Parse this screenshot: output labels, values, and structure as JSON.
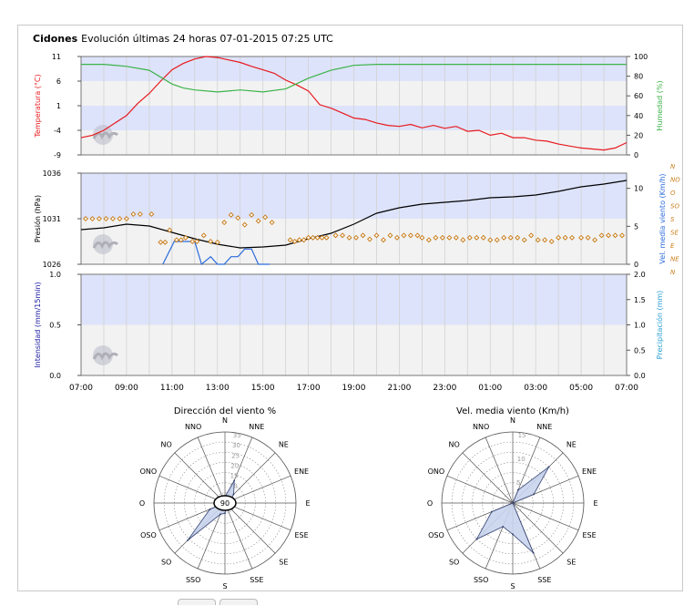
{
  "header": {
    "station": "Cidones",
    "subtitle": "Evolución últimas 24 horas 07-01-2015 07:25 UTC"
  },
  "colors": {
    "temperature": "#e8191e",
    "humidity": "#3cb34a",
    "pressure": "#000000",
    "wind_speed": "#2b6bdc",
    "wind_dir": "#c97d1b",
    "band": "#dde3fa",
    "band_alt": "#f2f2f2",
    "intensity_label": "#1a1aa0",
    "precip_label": "#2aa0d6",
    "rose_fill": "#c9d4ee"
  },
  "x_axis": {
    "labels": [
      "07:00",
      "09:00",
      "11:00",
      "13:00",
      "15:00",
      "17:00",
      "19:00",
      "21:00",
      "23:00",
      "01:00",
      "03:00",
      "05:00",
      "07:00"
    ]
  },
  "chart_data": [
    {
      "type": "line",
      "x_unit": "hours since 07:00",
      "left_axis": {
        "label": "Temperatura (°C)",
        "ticks": [
          "11",
          "6",
          "1",
          "-4",
          "-9"
        ],
        "range": [
          -9,
          11
        ]
      },
      "right_axis": {
        "label": "Humedad (%)",
        "ticks": [
          "100",
          "80",
          "60",
          "40",
          "20",
          "0"
        ],
        "range": [
          0,
          100
        ]
      },
      "series": [
        {
          "name": "Temperatura (°C)",
          "axis": "left",
          "x": [
            0,
            0.5,
            1,
            1.5,
            2,
            2.5,
            3,
            3.5,
            4,
            4.5,
            5,
            5.5,
            6,
            6.5,
            7,
            7.5,
            8,
            8.5,
            9,
            9.5,
            10,
            10.5,
            11,
            11.5,
            12,
            12.5,
            13,
            13.5,
            14,
            14.5,
            15,
            15.5,
            16,
            16.5,
            17,
            17.5,
            18,
            18.5,
            19,
            19.5,
            20,
            20.5,
            21,
            21.5,
            22,
            22.5,
            23,
            23.5,
            24
          ],
          "values": [
            -5.5,
            -5,
            -4,
            -2.5,
            -1,
            1.5,
            3.5,
            6,
            8.3,
            9.6,
            10.5,
            11,
            10.8,
            10.3,
            9.8,
            9,
            8.3,
            7.6,
            6.2,
            5.2,
            4,
            1.2,
            0.5,
            -0.5,
            -1.5,
            -1.8,
            -2.5,
            -3,
            -3.2,
            -2.8,
            -3.5,
            -3,
            -3.6,
            -3.2,
            -4.2,
            -4,
            -5,
            -4.6,
            -5.5,
            -5.5,
            -6,
            -6.2,
            -6.8,
            -7.2,
            -7.6,
            -7.8,
            -8,
            -7.6,
            -6.5
          ]
        },
        {
          "name": "Humedad (%)",
          "axis": "right",
          "x": [
            0,
            1,
            2,
            3,
            4,
            4.5,
            5,
            6,
            7,
            8,
            9,
            10,
            11,
            12,
            13,
            14,
            15,
            16,
            17,
            18,
            19,
            20,
            21,
            22,
            23,
            24
          ],
          "values": [
            92,
            92,
            90,
            86,
            72,
            68,
            66,
            64,
            66,
            64,
            67,
            78,
            86,
            91,
            92,
            92,
            92,
            92,
            92,
            92,
            92,
            92,
            92,
            92,
            92,
            92
          ]
        }
      ]
    },
    {
      "type": "line",
      "x_unit": "hours since 07:00",
      "left_axis": {
        "label": "Presión (hPa)",
        "ticks": [
          "1036",
          "1031",
          "1026"
        ],
        "range": [
          1026,
          1036
        ]
      },
      "right_axis": {
        "label": "Vel. media viento (Km/h)",
        "ticks": [
          "10",
          "5",
          "0"
        ],
        "range": [
          0,
          12
        ]
      },
      "dir_axis": {
        "ticks": [
          "N",
          "NO",
          "O",
          "SO",
          "S",
          "SE",
          "E",
          "NE",
          "N"
        ]
      },
      "series": [
        {
          "name": "Presión (hPa)",
          "axis": "left",
          "x": [
            0,
            1,
            2,
            3,
            4,
            5,
            6,
            7,
            8,
            9,
            10,
            11,
            12,
            13,
            14,
            15,
            16,
            17,
            18,
            19,
            20,
            21,
            22,
            23,
            24
          ],
          "values": [
            1029.8,
            1030,
            1030.4,
            1030.2,
            1029.5,
            1028.8,
            1028.2,
            1027.8,
            1027.9,
            1028.1,
            1028.8,
            1029.4,
            1030.4,
            1031.6,
            1032.2,
            1032.6,
            1032.8,
            1033,
            1033.3,
            1033.4,
            1033.6,
            1034,
            1034.5,
            1034.8,
            1035.2
          ]
        },
        {
          "name": "Vel. media viento (Km/h)",
          "axis": "right",
          "x": [
            3.6,
            4.1,
            4.6,
            5,
            5.3,
            5.7,
            6,
            6.3,
            6.6,
            6.9,
            7.2,
            7.5,
            7.8,
            8.3
          ],
          "values": [
            0,
            3,
            3,
            3,
            0,
            1,
            0,
            0,
            1,
            1,
            2,
            2,
            0,
            0
          ]
        },
        {
          "name": "Dirección",
          "axis": "dir",
          "marker": "diamond",
          "x": [
            0.2,
            0.5,
            0.8,
            1.1,
            1.4,
            1.7,
            2,
            2.3,
            2.6,
            3.1,
            3.5,
            3.7,
            3.9,
            4.2,
            4.4,
            4.6,
            4.9,
            5.1,
            5.4,
            5.7,
            6,
            6.3,
            6.6,
            6.9,
            7.2,
            7.5,
            7.8,
            8.1,
            8.4,
            9.2,
            9.4,
            9.6,
            9.8,
            10,
            10.2,
            10.4,
            10.6,
            10.8,
            11.2,
            11.5,
            11.8,
            12.1,
            12.4,
            12.7,
            13,
            13.3,
            13.6,
            13.9,
            14.2,
            14.5,
            14.8,
            15,
            15.3,
            15.6,
            15.9,
            16.2,
            16.5,
            16.8,
            17.1,
            17.4,
            17.7,
            18,
            18.3,
            18.6,
            18.9,
            19.2,
            19.5,
            19.8,
            20.1,
            20.4,
            20.7,
            21,
            21.3,
            21.6,
            22,
            22.3,
            22.6,
            22.9,
            23.2,
            23.5,
            23.8
          ],
          "values": [
            6,
            6,
            6,
            6,
            6,
            6,
            6,
            6.6,
            6.6,
            6.6,
            2.9,
            2.9,
            4.5,
            3.2,
            3.2,
            3.5,
            3,
            3,
            3.8,
            3,
            2.9,
            5.5,
            6.5,
            6.1,
            5.2,
            6.5,
            5.7,
            6.2,
            5.5,
            3.2,
            3,
            3.2,
            3.2,
            3.5,
            3.5,
            3.5,
            3.5,
            3.5,
            3.8,
            3.8,
            3.5,
            3.5,
            3.8,
            3.3,
            3.8,
            3.2,
            3.8,
            3.5,
            3.8,
            3.8,
            3.8,
            3.5,
            3.2,
            3.5,
            3.5,
            3.5,
            3.5,
            3.2,
            3.5,
            3.5,
            3.5,
            3.2,
            3.2,
            3.5,
            3.5,
            3.5,
            3.2,
            3.8,
            3.2,
            3.2,
            3,
            3.5,
            3.5,
            3.5,
            3.5,
            3.5,
            3.2,
            3.8,
            3.8,
            3.8,
            3.8
          ]
        }
      ]
    },
    {
      "type": "line",
      "x_unit": "hours since 07:00",
      "left_axis": {
        "label": "Intensidad (mm/15min)",
        "ticks": [
          "1.0",
          "0.5",
          "0.0"
        ],
        "range": [
          0,
          1
        ]
      },
      "right_axis": {
        "label": "Precipitación (mm)",
        "ticks": [
          "2.0",
          "1.5",
          "1.0",
          "0.5",
          "0.0"
        ],
        "range": [
          0,
          2
        ]
      },
      "series": []
    },
    {
      "type": "polar",
      "title": "Dirección del viento %",
      "directions": [
        "N",
        "NNE",
        "NE",
        "ENE",
        "E",
        "ESE",
        "SE",
        "SSE",
        "S",
        "SSO",
        "SO",
        "OSO",
        "O",
        "ONO",
        "NO",
        "NNO"
      ],
      "rings": [
        "5",
        "10",
        "15",
        "20",
        "25",
        "30",
        "35"
      ],
      "center_label": "90",
      "values": [
        3,
        12,
        6,
        3,
        3,
        2,
        3,
        2,
        5,
        6,
        26,
        8,
        0,
        0,
        0,
        0
      ]
    },
    {
      "type": "polar",
      "title": "Vel. media viento (Km/h)",
      "directions": [
        "N",
        "NNE",
        "NE",
        "ENE",
        "E",
        "ESE",
        "SE",
        "SSE",
        "S",
        "SSO",
        "SO",
        "OSO",
        "O",
        "ONO",
        "NO",
        "NNO"
      ],
      "rings": [
        "5",
        "10",
        "15"
      ],
      "values": [
        0,
        5,
        18,
        8,
        0,
        0,
        0,
        19,
        11,
        9,
        18,
        8,
        0,
        0,
        0,
        0
      ]
    }
  ]
}
